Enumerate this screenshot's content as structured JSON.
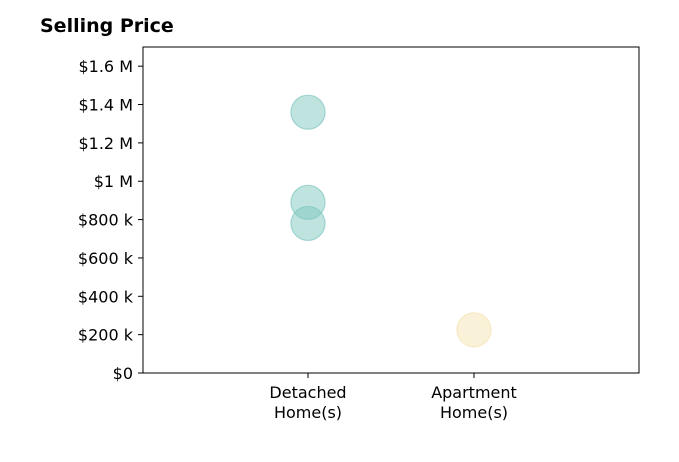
{
  "chart_data": {
    "type": "scatter",
    "title": "Selling Price",
    "xlabel": "",
    "ylabel": "",
    "categories": [
      "Detached Home(s)",
      "Apartment Home(s)"
    ],
    "category_lines": [
      [
        "Detached",
        "Home(s)"
      ],
      [
        "Apartment",
        "Home(s)"
      ]
    ],
    "ylim": [
      0,
      1700000
    ],
    "y_ticks": [
      {
        "value": 0,
        "label": "$0"
      },
      {
        "value": 200000,
        "label": "$200 k"
      },
      {
        "value": 400000,
        "label": "$400 k"
      },
      {
        "value": 600000,
        "label": "$600 k"
      },
      {
        "value": 800000,
        "label": "$800 k"
      },
      {
        "value": 1000000,
        "label": "$1 M"
      },
      {
        "value": 1200000,
        "label": "$1.2 M"
      },
      {
        "value": 1400000,
        "label": "$1.4 M"
      },
      {
        "value": 1600000,
        "label": "$1.6 M"
      }
    ],
    "points": [
      {
        "category": "Detached Home(s)",
        "y": 1360000,
        "color": "#80c8bf"
      },
      {
        "category": "Detached Home(s)",
        "y": 890000,
        "color": "#80c8bf"
      },
      {
        "category": "Detached Home(s)",
        "y": 780000,
        "color": "#80c8bf"
      },
      {
        "category": "Apartment Home(s)",
        "y": 225000,
        "color": "#f6e3b4"
      }
    ],
    "grid": false,
    "legend": "none"
  }
}
